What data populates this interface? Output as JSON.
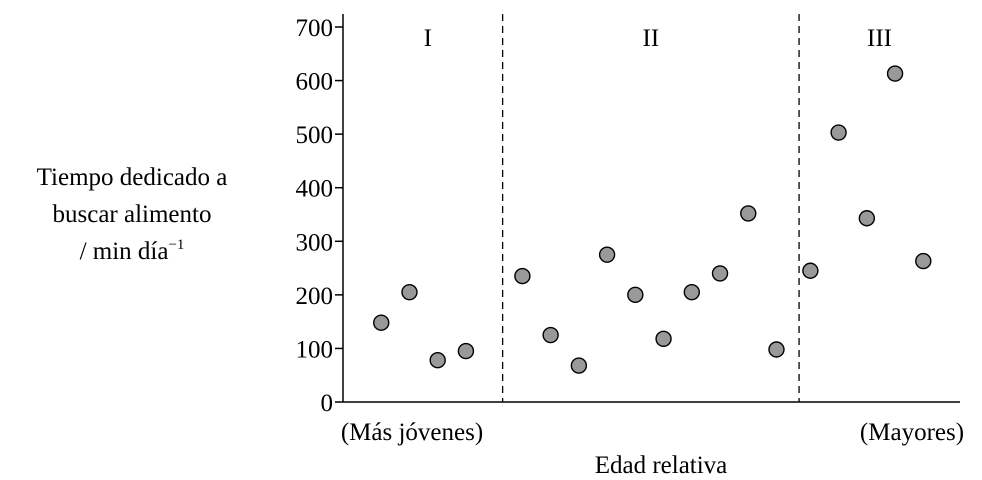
{
  "chart_data": {
    "type": "scatter",
    "ylabel_lines": [
      "Tiempo dedicado a",
      "buscar alimento",
      "/ min día"
    ],
    "ylabel_superscript": "−1",
    "xlabel": "Edad relativa",
    "x_left_label": "(Más jóvenes)",
    "x_right_label": "(Mayores)",
    "ylim": [
      0,
      700
    ],
    "yticks": [
      0,
      100,
      200,
      300,
      400,
      500,
      600,
      700
    ],
    "grid": false,
    "point_color": "#999999",
    "regions": [
      {
        "label": "I",
        "from": 0,
        "to": 5.3
      },
      {
        "label": "II",
        "from": 5.3,
        "to": 15.8
      },
      {
        "label": "III",
        "from": 15.8,
        "to": 21.5
      }
    ],
    "xlim": [
      0,
      21.5
    ],
    "points": [
      {
        "x": 1,
        "y": 148
      },
      {
        "x": 2,
        "y": 205
      },
      {
        "x": 3,
        "y": 78
      },
      {
        "x": 4,
        "y": 95
      },
      {
        "x": 6,
        "y": 235
      },
      {
        "x": 7,
        "y": 125
      },
      {
        "x": 8,
        "y": 68
      },
      {
        "x": 9,
        "y": 275
      },
      {
        "x": 10,
        "y": 200
      },
      {
        "x": 11,
        "y": 118
      },
      {
        "x": 12,
        "y": 205
      },
      {
        "x": 13,
        "y": 240
      },
      {
        "x": 14,
        "y": 352
      },
      {
        "x": 15,
        "y": 98
      },
      {
        "x": 16.2,
        "y": 245
      },
      {
        "x": 17.2,
        "y": 503
      },
      {
        "x": 18.2,
        "y": 343
      },
      {
        "x": 19.2,
        "y": 613
      },
      {
        "x": 20.2,
        "y": 263
      }
    ]
  }
}
